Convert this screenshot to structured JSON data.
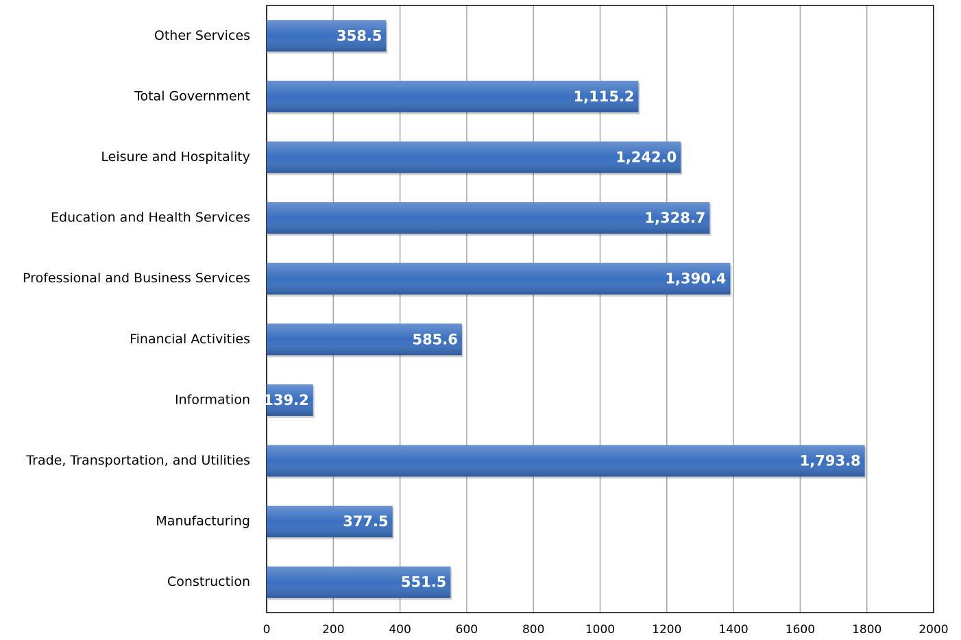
{
  "chart_data": {
    "type": "bar",
    "orientation": "horizontal",
    "categories": [
      "Other Services",
      "Total Government",
      "Leisure and Hospitality",
      "Education and Health Services",
      "Professional and Business Services",
      "Financial Activities",
      "Information",
      "Trade, Transportation, and Utilities",
      "Manufacturing",
      "Construction"
    ],
    "values": [
      358.5,
      1115.2,
      1242.0,
      1328.7,
      1390.4,
      585.6,
      139.2,
      1793.8,
      377.5,
      551.5
    ],
    "value_labels": [
      "358.5",
      "1,115.2",
      "1,242.0",
      "1,328.7",
      "1,390.4",
      "585.6",
      "139.2",
      "1,793.8",
      "377.5",
      "551.5"
    ],
    "color": "#3a70c0",
    "xlim": [
      0,
      2000
    ],
    "xticks": [
      0,
      200,
      400,
      600,
      800,
      1000,
      1200,
      1400,
      1600,
      1800,
      2000
    ],
    "grid": true
  }
}
